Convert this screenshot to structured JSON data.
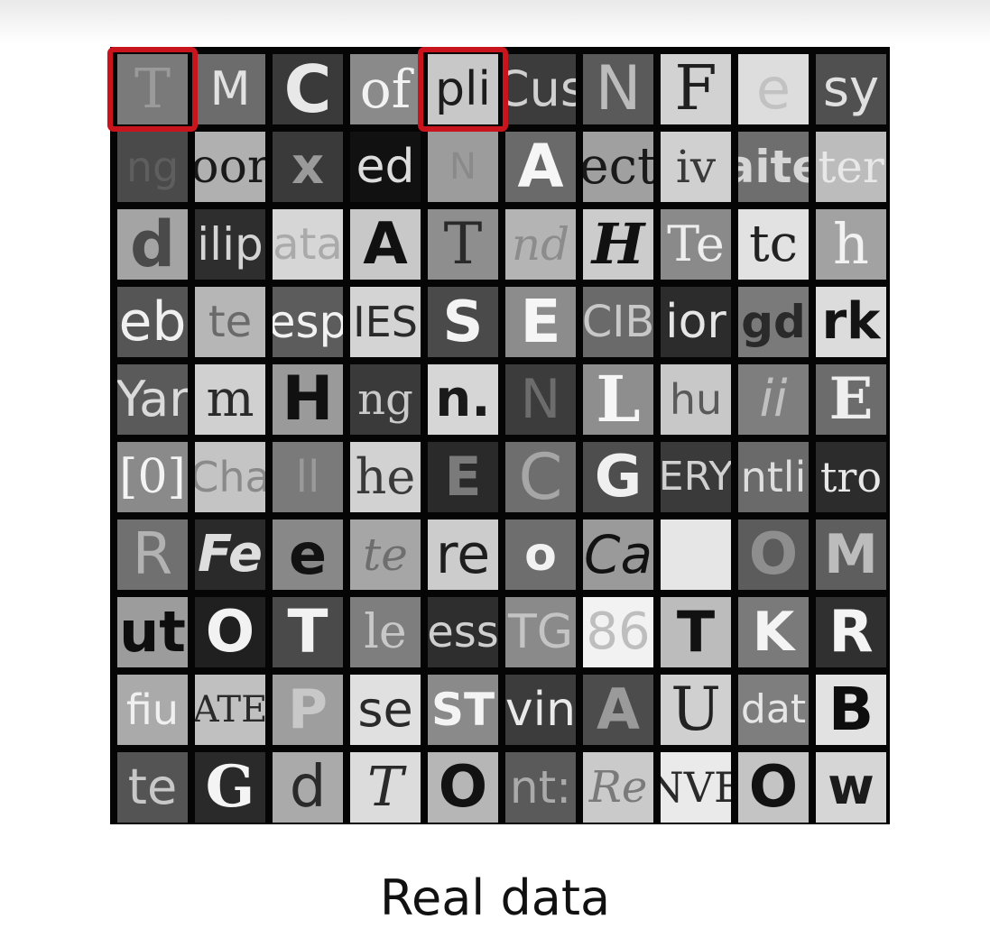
{
  "caption": "Real data",
  "highlight_color": "#c8141c",
  "tiles": [
    [
      {
        "t": "T",
        "bg": "#7a7a7a",
        "fg": "#9a9a9a",
        "f": "serif",
        "s": 60
      },
      {
        "t": "M",
        "bg": "#6c6c6c",
        "fg": "#e2e2e2",
        "f": "sans",
        "s": 52
      },
      {
        "t": "C",
        "bg": "#3a3a3a",
        "fg": "#e8e8e8",
        "f": "sans-bold",
        "s": 72
      },
      {
        "t": "of",
        "bg": "#8a8a8a",
        "fg": "#f2f2f2",
        "f": "serif",
        "s": 58
      },
      {
        "t": "pli",
        "bg": "#c8c8c8",
        "fg": "#1c1c1c",
        "f": "sans",
        "s": 52
      },
      {
        "t": "Cus",
        "bg": "#3c3c3c",
        "fg": "#d0d0d0",
        "f": "sans",
        "s": 54
      },
      {
        "t": "N",
        "bg": "#5a5a5a",
        "fg": "#bcbcbc",
        "f": "sans",
        "s": 68
      },
      {
        "t": "F",
        "bg": "#d2d2d2",
        "fg": "#202020",
        "f": "serif",
        "s": 68
      },
      {
        "t": "e",
        "bg": "#dddddd",
        "fg": "#c2c2c2",
        "f": "sans",
        "s": 62
      },
      {
        "t": "sy",
        "bg": "#505050",
        "fg": "#e0e0e0",
        "f": "sans",
        "s": 56
      }
    ],
    [
      {
        "t": "ng",
        "bg": "#4a4a4a",
        "fg": "#5e5e5e",
        "f": "sans",
        "s": 46
      },
      {
        "t": "oor",
        "bg": "#b0b0b0",
        "fg": "#1a1a1a",
        "f": "serif",
        "s": 52
      },
      {
        "t": "x",
        "bg": "#3a3a3a",
        "fg": "#9a9a9a",
        "f": "sans-bold",
        "s": 56
      },
      {
        "t": "ed",
        "bg": "#111111",
        "fg": "#dcdcdc",
        "f": "sans",
        "s": 52
      },
      {
        "t": "N",
        "bg": "#9c9c9c",
        "fg": "#8a8a8a",
        "f": "sans",
        "s": 40
      },
      {
        "t": "A",
        "bg": "#6a6a6a",
        "fg": "#f6f6f6",
        "f": "sans-bold",
        "s": 66
      },
      {
        "t": "ect",
        "bg": "#a0a0a0",
        "fg": "#1a1a1a",
        "f": "serif",
        "s": 56
      },
      {
        "t": "iv",
        "bg": "#d0d0d0",
        "fg": "#3a3a3a",
        "f": "serif",
        "s": 50
      },
      {
        "t": "aite",
        "bg": "#6e6e6e",
        "fg": "#d6d6d6",
        "f": "sans-bold",
        "s": 50
      },
      {
        "t": "ter",
        "bg": "#bcbcbc",
        "fg": "#e8e8e8",
        "f": "serif",
        "s": 50
      }
    ],
    [
      {
        "t": "d",
        "bg": "#a4a4a4",
        "fg": "#4a4a4a",
        "f": "sans-bold",
        "s": 70
      },
      {
        "t": "ilip",
        "bg": "#2e2e2e",
        "fg": "#d4d4d4",
        "f": "sans",
        "s": 50
      },
      {
        "t": "ata",
        "bg": "#d6d6d6",
        "fg": "#aaaaaa",
        "f": "sans",
        "s": 48
      },
      {
        "t": "A",
        "bg": "#c8c8c8",
        "fg": "#111111",
        "f": "sans-bold",
        "s": 64
      },
      {
        "t": "T",
        "bg": "#8e8e8e",
        "fg": "#2a2a2a",
        "f": "serif",
        "s": 64
      },
      {
        "t": "nd",
        "bg": "#b4b4b4",
        "fg": "#8c8c8c",
        "f": "serif-italic",
        "s": 50
      },
      {
        "t": "H",
        "bg": "#cccccc",
        "fg": "#111111",
        "f": "serif-bold-italic",
        "s": 62
      },
      {
        "t": "Te",
        "bg": "#8a8a8a",
        "fg": "#eeeeee",
        "f": "serif",
        "s": 54
      },
      {
        "t": "tc",
        "bg": "#e2e2e2",
        "fg": "#222222",
        "f": "serif",
        "s": 56
      },
      {
        "t": "h",
        "bg": "#a2a2a2",
        "fg": "#f2f2f2",
        "f": "serif",
        "s": 62
      }
    ],
    [
      {
        "t": "eb",
        "bg": "#555555",
        "fg": "#f0f0f0",
        "f": "sans",
        "s": 60
      },
      {
        "t": "te",
        "bg": "#b6b6b6",
        "fg": "#6a6a6a",
        "f": "sans",
        "s": 48
      },
      {
        "t": "esp",
        "bg": "#5c5c5c",
        "fg": "#f2f2f2",
        "f": "sans",
        "s": 50
      },
      {
        "t": "IES",
        "bg": "#d4d4d4",
        "fg": "#2a2a2a",
        "f": "sans",
        "s": 46
      },
      {
        "t": "S",
        "bg": "#4a4a4a",
        "fg": "#f4f4f4",
        "f": "sans-bold",
        "s": 62
      },
      {
        "t": "E",
        "bg": "#8c8c8c",
        "fg": "#f6f6f6",
        "f": "sans-bold",
        "s": 66
      },
      {
        "t": "CIB",
        "bg": "#6a6a6a",
        "fg": "#c8c8c8",
        "f": "sans",
        "s": 48
      },
      {
        "t": "ior",
        "bg": "#2c2c2c",
        "fg": "#e6e6e6",
        "f": "sans",
        "s": 52
      },
      {
        "t": "gd",
        "bg": "#7a7a7a",
        "fg": "#2a2a2a",
        "f": "sans-bold",
        "s": 50
      },
      {
        "t": "rk",
        "bg": "#dcdcdc",
        "fg": "#141414",
        "f": "sans-bold",
        "s": 56
      }
    ],
    [
      {
        "t": "Yar",
        "bg": "#5a5a5a",
        "fg": "#dadada",
        "f": "sans",
        "s": 54
      },
      {
        "t": "m",
        "bg": "#d0d0d0",
        "fg": "#2a2a2a",
        "f": "serif",
        "s": 56
      },
      {
        "t": "H",
        "bg": "#9a9a9a",
        "fg": "#111111",
        "f": "sans-bold",
        "s": 68
      },
      {
        "t": "ng",
        "bg": "#3a3a3a",
        "fg": "#cacaca",
        "f": "serif",
        "s": 48
      },
      {
        "t": "n.",
        "bg": "#d6d6d6",
        "fg": "#1a1a1a",
        "f": "sans-bold",
        "s": 56
      },
      {
        "t": "N",
        "bg": "#3c3c3c",
        "fg": "#6c6c6c",
        "f": "sans",
        "s": 60
      },
      {
        "t": "L",
        "bg": "#8e8e8e",
        "fg": "#f6f6f6",
        "f": "serif-bold",
        "s": 70
      },
      {
        "t": "hu",
        "bg": "#c8c8c8",
        "fg": "#5a5a5a",
        "f": "sans",
        "s": 46
      },
      {
        "t": "ii",
        "bg": "#7e7e7e",
        "fg": "#c0c0c0",
        "f": "sans-italic",
        "s": 56
      },
      {
        "t": "E",
        "bg": "#6c6c6c",
        "fg": "#eeeeee",
        "f": "serif-bold",
        "s": 64
      }
    ],
    [
      {
        "t": "[0]",
        "bg": "#8a8a8a",
        "fg": "#f4f4f4",
        "f": "serif",
        "s": 52
      },
      {
        "t": "Cha",
        "bg": "#c4c4c4",
        "fg": "#8a8a8a",
        "f": "sans",
        "s": 46
      },
      {
        "t": "ll",
        "bg": "#7a7a7a",
        "fg": "#9a9a9a",
        "f": "sans",
        "s": 48
      },
      {
        "t": "he",
        "bg": "#d2d2d2",
        "fg": "#3a3a3a",
        "f": "serif",
        "s": 54
      },
      {
        "t": "E",
        "bg": "#2a2a2a",
        "fg": "#7a7a7a",
        "f": "sans-bold",
        "s": 60
      },
      {
        "t": "C",
        "bg": "#6e6e6e",
        "fg": "#a6a6a6",
        "f": "sans",
        "s": 70
      },
      {
        "t": "G",
        "bg": "#4e4e4e",
        "fg": "#f0f0f0",
        "f": "sans-bold",
        "s": 64
      },
      {
        "t": "ERY",
        "bg": "#3a3a3a",
        "fg": "#d0d0d0",
        "f": "sans",
        "s": 44
      },
      {
        "t": "ntli",
        "bg": "#6a6a6a",
        "fg": "#dedede",
        "f": "sans",
        "s": 46
      },
      {
        "t": "tro",
        "bg": "#2c2c2c",
        "fg": "#e8e8e8",
        "f": "serif",
        "s": 46
      }
    ],
    [
      {
        "t": "R",
        "bg": "#707070",
        "fg": "#b2b2b2",
        "f": "sans",
        "s": 64
      },
      {
        "t": "Fe",
        "bg": "#2a2a2a",
        "fg": "#dedede",
        "f": "sans-bold-italic",
        "s": 56
      },
      {
        "t": "e",
        "bg": "#888888",
        "fg": "#121212",
        "f": "sans-bold",
        "s": 62
      },
      {
        "t": "te",
        "bg": "#a6a6a6",
        "fg": "#6e6e6e",
        "f": "serif-italic",
        "s": 50
      },
      {
        "t": "re",
        "bg": "#cccccc",
        "fg": "#1e1e1e",
        "f": "sans",
        "s": 60
      },
      {
        "t": "o",
        "bg": "#6e6e6e",
        "fg": "#f2f2f2",
        "f": "sans-bold",
        "s": 52
      },
      {
        "t": "Ca",
        "bg": "#9a9a9a",
        "fg": "#121212",
        "f": "sans-italic",
        "s": 58
      },
      {
        "t": "",
        "bg": "#e6e6e6",
        "fg": "#bbbbbb",
        "f": "sans",
        "s": 40
      },
      {
        "t": "O",
        "bg": "#5c5c5c",
        "fg": "#8e8e8e",
        "f": "sans-bold",
        "s": 64
      },
      {
        "t": "M",
        "bg": "#5e5e5e",
        "fg": "#bcbcbc",
        "f": "sans-bold",
        "s": 60
      }
    ],
    [
      {
        "t": "ut",
        "bg": "#9c9c9c",
        "fg": "#0e0e0e",
        "f": "sans-bold",
        "s": 62
      },
      {
        "t": "O",
        "bg": "#202020",
        "fg": "#f2f2f2",
        "f": "sans-bold",
        "s": 64
      },
      {
        "t": "T",
        "bg": "#4a4a4a",
        "fg": "#f2f2f2",
        "f": "sans-bold",
        "s": 66
      },
      {
        "t": "le",
        "bg": "#7e7e7e",
        "fg": "#c8c8c8",
        "f": "serif",
        "s": 52
      },
      {
        "t": "ess",
        "bg": "#2e2e2e",
        "fg": "#cfcfcf",
        "f": "sans",
        "s": 48
      },
      {
        "t": "TG",
        "bg": "#8a8a8a",
        "fg": "#c4c4c4",
        "f": "sans",
        "s": 52
      },
      {
        "t": "86",
        "bg": "#f2f2f2",
        "fg": "#bebebe",
        "f": "sans",
        "s": 56
      },
      {
        "t": "T",
        "bg": "#bcbcbc",
        "fg": "#121212",
        "f": "sans-bold",
        "s": 62
      },
      {
        "t": "K",
        "bg": "#7a7a7a",
        "fg": "#f4f4f4",
        "f": "sans-bold",
        "s": 60
      },
      {
        "t": "R",
        "bg": "#303030",
        "fg": "#f4f4f4",
        "f": "sans-bold",
        "s": 64
      }
    ],
    [
      {
        "t": "fiu",
        "bg": "#aaaaaa",
        "fg": "#f0f0f0",
        "f": "sans",
        "s": 46
      },
      {
        "t": "ATE",
        "bg": "#c0c0c0",
        "fg": "#2a2a2a",
        "f": "serif",
        "s": 40
      },
      {
        "t": "P",
        "bg": "#9e9e9e",
        "fg": "#c8c8c8",
        "f": "sans-bold",
        "s": 60
      },
      {
        "t": "se",
        "bg": "#e0e0e0",
        "fg": "#2a2a2a",
        "f": "sans",
        "s": 54
      },
      {
        "t": "ST",
        "bg": "#8a8a8a",
        "fg": "#f4f4f4",
        "f": "sans-bold",
        "s": 50
      },
      {
        "t": "vin",
        "bg": "#3c3c3c",
        "fg": "#eaeaea",
        "f": "sans",
        "s": 52
      },
      {
        "t": "A",
        "bg": "#4c4c4c",
        "fg": "#9a9a9a",
        "f": "sans-bold",
        "s": 62
      },
      {
        "t": "U",
        "bg": "#d0d0d0",
        "fg": "#222222",
        "f": "serif",
        "s": 66
      },
      {
        "t": "dat",
        "bg": "#7e7e7e",
        "fg": "#e6e6e6",
        "f": "sans",
        "s": 44
      },
      {
        "t": "B",
        "bg": "#e2e2e2",
        "fg": "#0e0e0e",
        "f": "sans-bold",
        "s": 66
      }
    ],
    [
      {
        "t": "te",
        "bg": "#545454",
        "fg": "#c8c8c8",
        "f": "sans",
        "s": 54
      },
      {
        "t": "G",
        "bg": "#2a2a2a",
        "fg": "#f4f4f4",
        "f": "serif-bold",
        "s": 64
      },
      {
        "t": "d",
        "bg": "#aaaaaa",
        "fg": "#2a2a2a",
        "f": "sans",
        "s": 64
      },
      {
        "t": "T",
        "bg": "#dcdcdc",
        "fg": "#2a2a2a",
        "f": "serif-italic",
        "s": 60
      },
      {
        "t": "O",
        "bg": "#b6b6b6",
        "fg": "#121212",
        "f": "sans-bold",
        "s": 64
      },
      {
        "t": "nt:",
        "bg": "#5a5a5a",
        "fg": "#aaaaaa",
        "f": "sans",
        "s": 50
      },
      {
        "t": "Re",
        "bg": "#cacaca",
        "fg": "#7a7a7a",
        "f": "serif-italic",
        "s": 48
      },
      {
        "t": "NVE",
        "bg": "#eaeaea",
        "fg": "#2a2a2a",
        "f": "serif",
        "s": 46
      },
      {
        "t": "O",
        "bg": "#c4c4c4",
        "fg": "#121212",
        "f": "sans-bold",
        "s": 64
      },
      {
        "t": "w",
        "bg": "#d6d6d6",
        "fg": "#1c1c1c",
        "f": "sans-bold",
        "s": 56
      }
    ]
  ],
  "highlights": [
    {
      "row": 0,
      "col": 0
    },
    {
      "row": 0,
      "col": 4
    }
  ]
}
